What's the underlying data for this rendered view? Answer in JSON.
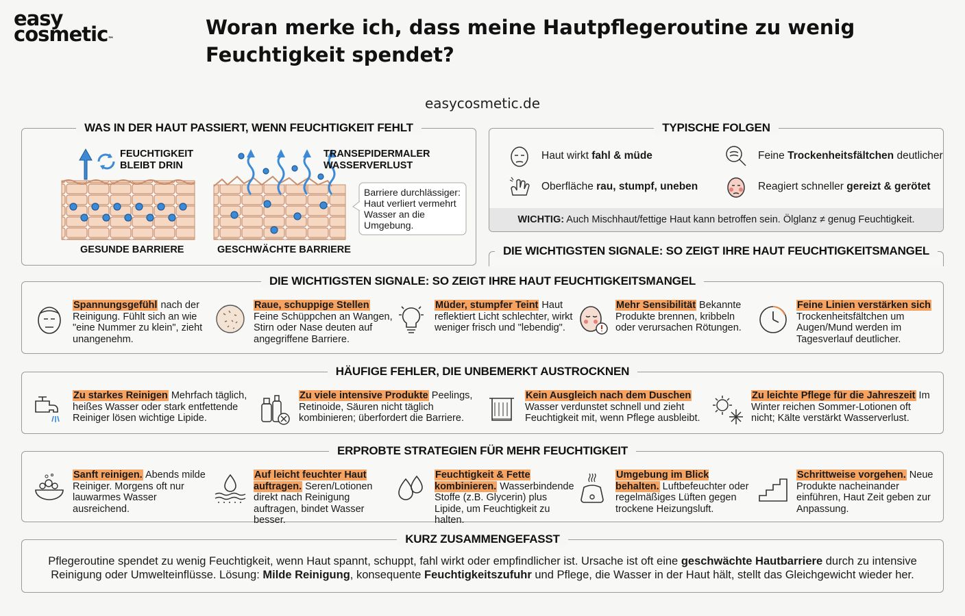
{
  "brand": {
    "line1": "easy",
    "line2": "cosmetic",
    "tm": "™"
  },
  "title": "Woran merke ich, dass meine Hautpflegeroutine zu wenig Feuchtigkeit spendet?",
  "site": "easycosmetic.de",
  "haut": {
    "heading": "WAS IN DER HAUT PASSIERT, WENN FEUCHTIGKEIT FEHLT",
    "label_keep": "FEUCHTIGKEIT BLEIBT DRIN",
    "label_tewl": "TRANSEPIDERMALER WASSERVERLUST",
    "caption_healthy": "GESUNDE BARRIERE",
    "caption_weak": "GESCHWÄCHTE BARRIERE",
    "note": "Barriere durchlässiger: Haut verliert vermehrt Wasser an die Umgebung."
  },
  "folgen": {
    "heading": "TYPISCHE FOLGEN",
    "items": [
      {
        "icon": "tired-face-icon",
        "pre": "Haut wirkt ",
        "bold": "fahl & müde",
        "post": ""
      },
      {
        "icon": "magnifier-wrinkles-icon",
        "pre": "Feine ",
        "bold": "Trockenheitsfältchen",
        "post": " deutlicher"
      },
      {
        "icon": "hand-touch-icon",
        "pre": "Oberfläche ",
        "bold": "rau, stumpf, uneben",
        "post": ""
      },
      {
        "icon": "irritated-face-icon",
        "pre": "Reagiert schneller ",
        "bold": "gereizt & gerötet",
        "post": ""
      }
    ],
    "note_bold": "WICHTIG:",
    "note": " Auch Mischhaut/fettige Haut kann betroffen sein. Ölglanz ≠ genug Feuchtigkeit.",
    "sub_heading": "DIE WICHTIGSTEN SIGNALE: SO ZEIGT IHRE HAUT FEUCHTIGKEITSMANGEL"
  },
  "signale": {
    "heading": "DIE WICHTIGSTEN SIGNALE: SO ZEIGT IHRE HAUT FEUCHTIGKEITSMANGEL",
    "items": [
      {
        "icon": "tight-face-icon",
        "title": "Spannungsgefühl",
        "text": " nach der Reinigung. Fühlt sich an wie \"eine Nummer zu klein\", zieht unangenehm."
      },
      {
        "icon": "flaky-skin-icon",
        "title": "Raue, schuppige Stellen",
        "text": " Feine Schüppchen an Wangen, Stirn oder Nase deuten auf angegriffene Barriere."
      },
      {
        "icon": "dim-bulb-icon",
        "title": "Müder, stumpfer Teint",
        "text": " Haut reflektiert Licht schlechter, wirkt weniger frisch und \"lebendig\"."
      },
      {
        "icon": "sensitive-face-icon",
        "title": "Mehr Sensibilität",
        "text": " Bekannte Produkte brennen, kribbeln oder verursachen Rötungen."
      },
      {
        "icon": "clock-icon",
        "title": "Feine Linien verstärken sich",
        "text": " Trockenheitsfältchen um Augen/Mund werden im Tagesverlauf deutlicher."
      }
    ]
  },
  "fehler": {
    "heading": "HÄUFIGE FEHLER, DIE UNBEMERKT AUSTROCKNEN",
    "items": [
      {
        "icon": "faucet-icon",
        "title": "Zu starkes Reinigen",
        "text": " Mehrfach täglich, heißes Wasser oder stark entfettende Reiniger lösen wichtige Lipide."
      },
      {
        "icon": "product-bottles-icon",
        "title": "Zu viele intensive Produkte",
        "text": " Peelings, Retinoide, Säuren nicht täglich kombinieren; überfordert die Barriere."
      },
      {
        "icon": "towel-icon",
        "title": "Kein Ausgleich nach dem Duschen",
        "text": " Wasser verdunstet schnell und zieht Feuchtigkeit mit, wenn Pflege ausbleibt."
      },
      {
        "icon": "sun-snowflake-icon",
        "title": "Zu leichte Pflege für die Jahreszeit",
        "text": " Im Winter reichen Sommer-Lotionen oft nicht; Kälte verstärkt Wasserverlust."
      }
    ]
  },
  "strategien": {
    "heading": "ERPROBTE STRATEGIEN FÜR MEHR FEUCHTIGKEIT",
    "items": [
      {
        "icon": "foam-bowl-icon",
        "title": "Sanft reinigen.",
        "text": " Abends milde Reiniger. Morgens oft nur lauwarmes Wasser ausreichend."
      },
      {
        "icon": "water-drop-skin-icon",
        "title": "Auf leicht feuchter Haut auftragen.",
        "text": " Seren/Lotionen direkt nach Reinigung auftragen, bindet Wasser besser."
      },
      {
        "icon": "two-drops-icon",
        "title": "Feuchtigkeit & Fette kombinieren.",
        "text": " Wasserbindende Stoffe (z.B. Glycerin) plus Lipide, um Feuchtigkeit zu halten."
      },
      {
        "icon": "humidifier-icon",
        "title": "Umgebung im Blick behalten.",
        "text": " Luftbefeuchter oder regelmäßiges Lüften gegen trockene Heizungsluft."
      },
      {
        "icon": "stairs-icon",
        "title": "Schrittweise vorgehen.",
        "text": " Neue Produkte nacheinander einführen, Haut Zeit geben zur Anpassung."
      }
    ]
  },
  "fazit": {
    "heading": "KURZ ZUSAMMENGEFASST",
    "t1": "Pflegeroutine spendet zu wenig Feuchtigkeit, wenn Haut spannt, schuppt, fahl wirkt oder empfindlicher ist. Ursache ist oft eine ",
    "b1": "geschwächte Hautbarriere",
    "t2": " durch zu intensive Reinigung oder Umwelteinflüsse. Lösung: ",
    "b2": "Milde Reinigung",
    "t3": ", konsequente ",
    "b3": "Feuchtigkeitszufuhr",
    "t4": " und Pflege, die Wasser in der Haut hält, stellt das Gleichgewicht wieder her."
  }
}
